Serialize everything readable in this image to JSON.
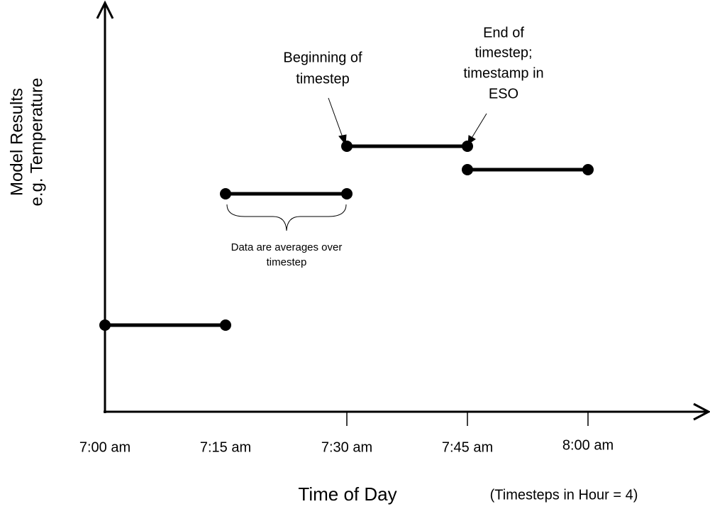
{
  "y_axis_label": [
    "Model Results",
    "e.g. Temperature"
  ],
  "x_axis_label": "Time of Day",
  "note": "(Timesteps in Hour = 4)",
  "ticks": [
    "7:00 am",
    "7:15 am",
    "7:30 am",
    "7:45 am",
    "8:00 am"
  ],
  "annotations": {
    "beginning": [
      "Beginning of",
      "timestep"
    ],
    "end": [
      "End of",
      "timestep;",
      "timestamp in",
      "ESO"
    ],
    "average": [
      "Data are averages over",
      "timestep"
    ]
  }
}
